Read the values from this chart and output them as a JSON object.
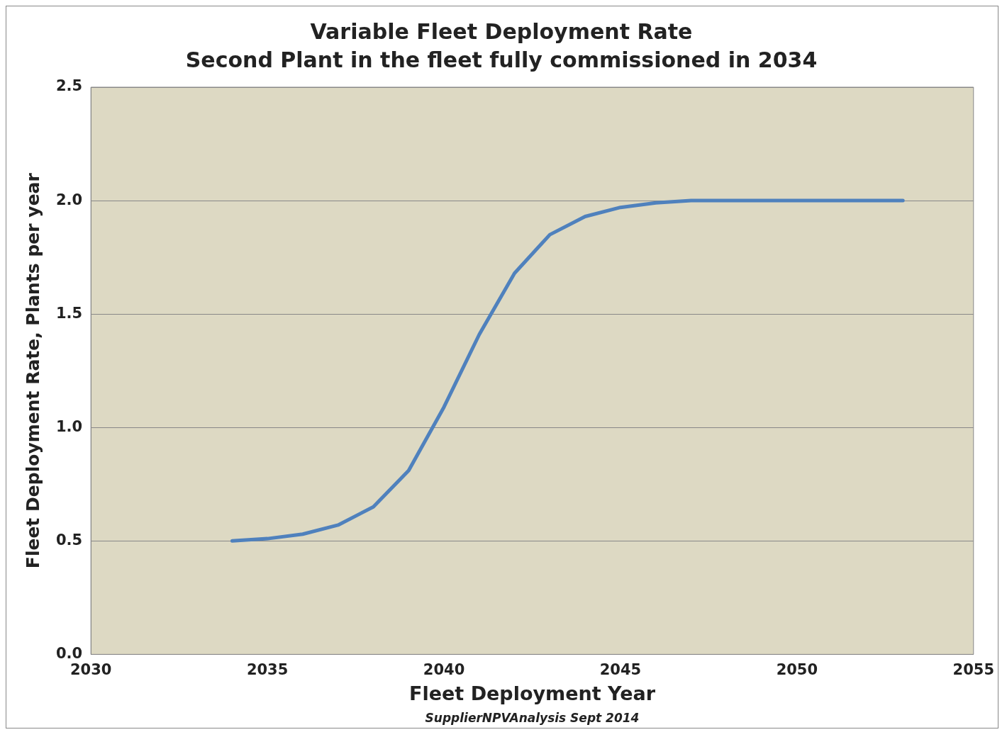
{
  "chart_data": {
    "type": "line",
    "title": "Variable Fleet Deployment Rate",
    "subtitle": "Second Plant in the fleet fully commissioned in 2034",
    "xlabel": "Fleet Deployment Year",
    "ylabel": "Fleet Deployment Rate, Plants per year",
    "annotations": [
      "SupplierNPVAnalysis Sept 2014"
    ],
    "x": [
      2034,
      2035,
      2036,
      2037,
      2038,
      2039,
      2040,
      2041,
      2042,
      2043,
      2044,
      2045,
      2046,
      2047,
      2048,
      2049,
      2050,
      2051,
      2052,
      2053
    ],
    "series": [
      {
        "color": "#4f81bd",
        "values": [
          0.5,
          0.51,
          0.53,
          0.57,
          0.65,
          0.81,
          1.09,
          1.41,
          1.68,
          1.85,
          1.93,
          1.97,
          1.99,
          2.0,
          2.0,
          2.0,
          2.0,
          2.0,
          2.0,
          2.0
        ]
      }
    ],
    "xlim": [
      2030,
      2055
    ],
    "xticks": [
      2030,
      2035,
      2040,
      2045,
      2050,
      2055
    ],
    "ylim": [
      0,
      2.5
    ],
    "yticks": [
      {
        "value": 0,
        "label": "0.0"
      },
      {
        "value": 0.5,
        "label": "0.5"
      },
      {
        "value": 1,
        "label": "1.0"
      },
      {
        "value": 1.5,
        "label": "1.5"
      },
      {
        "value": 2,
        "label": "2.0"
      },
      {
        "value": 2.5,
        "label": "2.5"
      }
    ],
    "grid": "y",
    "legend": false,
    "marker": "none",
    "line_style": "solid"
  }
}
